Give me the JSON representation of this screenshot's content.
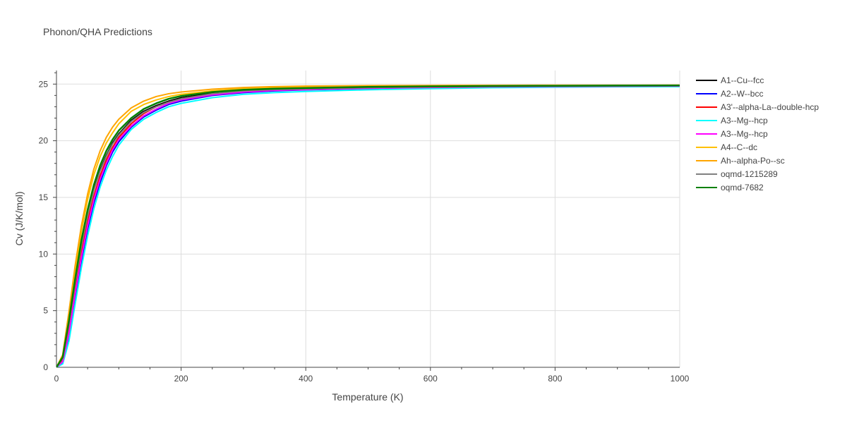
{
  "chart_data": {
    "type": "line",
    "title": "Phonon/QHA Predictions",
    "xlabel": "Temperature (K)",
    "ylabel": "Cv (J/K/mol)",
    "xlim": [
      0,
      1000
    ],
    "ylim": [
      0,
      26.2
    ],
    "xticks": [
      0,
      200,
      400,
      600,
      800,
      1000
    ],
    "xtick_labels": [
      "0",
      "200",
      "400",
      "600",
      "800",
      "1000"
    ],
    "yticks": [
      0,
      5,
      10,
      15,
      20,
      25
    ],
    "ytick_labels": [
      "0",
      "5",
      "10",
      "15",
      "20",
      "25"
    ],
    "grid": true,
    "legend_position": "right",
    "x": [
      0,
      10,
      20,
      30,
      40,
      50,
      60,
      70,
      80,
      90,
      100,
      120,
      140,
      160,
      180,
      200,
      250,
      300,
      350,
      400,
      500,
      600,
      700,
      800,
      900,
      1000
    ],
    "series": [
      {
        "name": "A1--Cu--fcc",
        "color": "#000000",
        "width": 2,
        "values": [
          0,
          0.8,
          3.9,
          7.5,
          10.8,
          13.5,
          15.7,
          17.4,
          18.7,
          19.8,
          20.6,
          21.8,
          22.6,
          23.1,
          23.5,
          23.8,
          24.2,
          24.45,
          24.55,
          24.6,
          24.7,
          24.78,
          24.82,
          24.85,
          24.87,
          24.88
        ]
      },
      {
        "name": "A2--W--bcc",
        "color": "#0000ff",
        "width": 2,
        "values": [
          0,
          0.4,
          2.8,
          6.2,
          9.4,
          12.2,
          14.5,
          16.3,
          17.8,
          19.0,
          19.9,
          21.2,
          22.1,
          22.7,
          23.2,
          23.5,
          24.0,
          24.25,
          24.4,
          24.5,
          24.6,
          24.7,
          24.75,
          24.78,
          24.8,
          24.82
        ]
      },
      {
        "name": "A3'--alpha-La--double-hcp",
        "color": "#ff0000",
        "width": 2,
        "values": [
          0,
          0.6,
          3.4,
          6.9,
          10.1,
          12.9,
          15.1,
          16.9,
          18.3,
          19.4,
          20.3,
          21.5,
          22.4,
          23.0,
          23.4,
          23.7,
          24.1,
          24.35,
          24.5,
          24.55,
          24.65,
          24.72,
          24.77,
          24.8,
          24.82,
          24.84
        ]
      },
      {
        "name": "A3--Mg--hcp",
        "color": "#00ffff",
        "width": 2,
        "values": [
          0,
          0.3,
          2.3,
          5.6,
          8.8,
          11.6,
          14.0,
          15.9,
          17.4,
          18.6,
          19.6,
          21.0,
          21.9,
          22.5,
          23.0,
          23.3,
          23.8,
          24.1,
          24.25,
          24.35,
          24.5,
          24.6,
          24.68,
          24.73,
          24.76,
          24.78
        ]
      },
      {
        "name": "A3--Mg--hcp",
        "color": "#ff00ff",
        "width": 2,
        "values": [
          0,
          0.5,
          3.0,
          6.5,
          9.7,
          12.5,
          14.8,
          16.6,
          18.0,
          19.2,
          20.1,
          21.3,
          22.2,
          22.8,
          23.3,
          23.6,
          24.05,
          24.3,
          24.45,
          24.52,
          24.63,
          24.7,
          24.76,
          24.79,
          24.81,
          24.83
        ]
      },
      {
        "name": "A4--C--dc",
        "color": "#ffc000",
        "width": 2,
        "values": [
          0,
          1.0,
          4.6,
          8.5,
          12.0,
          14.8,
          17.0,
          18.6,
          19.8,
          20.7,
          21.5,
          22.6,
          23.2,
          23.6,
          23.9,
          24.1,
          24.4,
          24.6,
          24.7,
          24.75,
          24.8,
          24.83,
          24.85,
          24.86,
          24.87,
          24.88
        ]
      },
      {
        "name": "Ah--alpha-Po--sc",
        "color": "#ffa500",
        "width": 2,
        "values": [
          0,
          1.1,
          4.9,
          9.0,
          12.5,
          15.3,
          17.5,
          19.1,
          20.3,
          21.2,
          21.9,
          22.9,
          23.5,
          23.9,
          24.15,
          24.3,
          24.55,
          24.7,
          24.78,
          24.82,
          24.86,
          24.88,
          24.89,
          24.9,
          24.9,
          24.91
        ]
      },
      {
        "name": "oqmd-1215289",
        "color": "#808080",
        "width": 2,
        "values": [
          0,
          0.8,
          3.8,
          7.4,
          10.7,
          13.4,
          15.6,
          17.3,
          18.6,
          19.7,
          20.5,
          21.7,
          22.5,
          23.0,
          23.4,
          23.7,
          24.15,
          24.4,
          24.52,
          24.58,
          24.68,
          24.75,
          24.8,
          24.83,
          24.85,
          24.86
        ]
      },
      {
        "name": "oqmd-7682",
        "color": "#008000",
        "width": 2.5,
        "values": [
          0,
          0.9,
          4.1,
          7.8,
          11.2,
          13.9,
          16.1,
          17.8,
          19.1,
          20.1,
          20.9,
          22.0,
          22.8,
          23.3,
          23.7,
          23.95,
          24.3,
          24.5,
          24.6,
          24.65,
          24.75,
          24.8,
          24.83,
          24.85,
          24.87,
          24.88
        ]
      }
    ]
  }
}
